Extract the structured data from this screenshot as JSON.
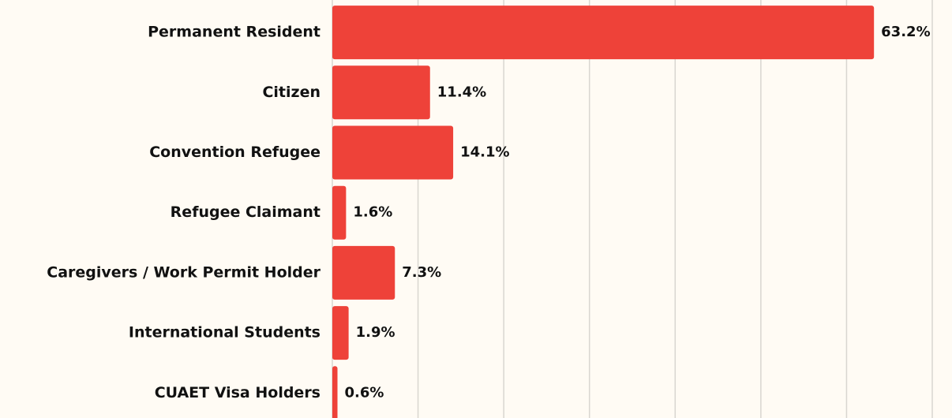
{
  "chart_data": {
    "type": "barh",
    "categories": [
      "Permanent Resident",
      "Citizen",
      "Convention Refugee",
      "Refugee Claimant",
      "Caregivers / Work Permit Holder",
      "International Students",
      "CUAET Visa Holders"
    ],
    "values": [
      63.2,
      11.4,
      14.1,
      1.6,
      7.3,
      1.9,
      0.6
    ],
    "value_labels": [
      "63.2%",
      "11.4%",
      "14.1%",
      "1.6%",
      "7.3%",
      "1.9%",
      "0.6%"
    ],
    "color": "#ee4239",
    "xlim": [
      0,
      70
    ],
    "xticks": [
      0,
      10,
      20,
      30,
      40,
      50,
      60,
      70
    ],
    "grid": true
  }
}
